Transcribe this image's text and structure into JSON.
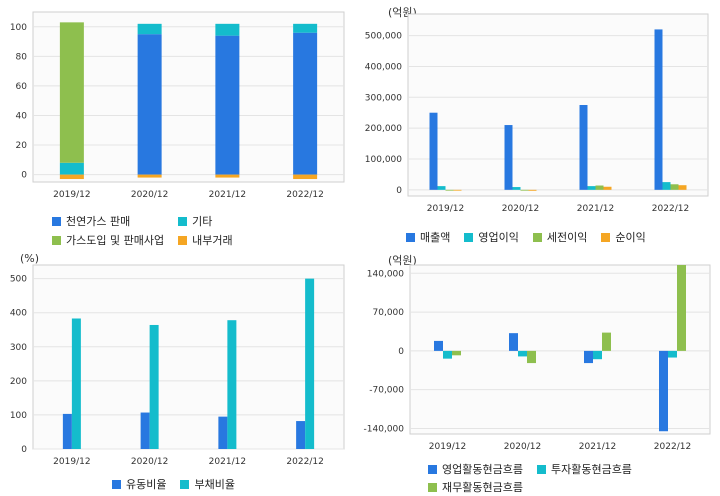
{
  "colors": {
    "blue": "#2878e0",
    "cyan": "#14bccc",
    "green": "#8ebf4e",
    "orange": "#f5a623",
    "grid": "#e4e4e4",
    "frame": "#cfcfcf",
    "plotbg": "#fbfbfb"
  },
  "chart_data": [
    {
      "id": "revenue-mix",
      "type": "bar",
      "stacked": true,
      "unit_label": "",
      "categories": [
        "2019/12",
        "2020/12",
        "2021/12",
        "2022/12"
      ],
      "ylim": [
        -5,
        110
      ],
      "yticks": [
        0,
        20,
        40,
        60,
        80,
        100
      ],
      "grid": true,
      "legend_position": "bottom",
      "series": [
        {
          "name": "천연가스 판매",
          "color": "blue",
          "values": [
            0,
            95,
            94,
            96
          ]
        },
        {
          "name": "기타",
          "color": "cyan",
          "values": [
            8,
            7,
            8,
            6
          ]
        },
        {
          "name": "가스도입 및 판매사업",
          "color": "green",
          "values": [
            95,
            0,
            0,
            0
          ]
        },
        {
          "name": "내부거래",
          "color": "orange",
          "values": [
            -3,
            -2,
            -2,
            -3
          ]
        }
      ]
    },
    {
      "id": "income",
      "type": "bar",
      "stacked": false,
      "unit_label": "(억원)",
      "categories": [
        "2019/12",
        "2020/12",
        "2021/12",
        "2022/12"
      ],
      "ylim": [
        -20000,
        570000
      ],
      "yticks": [
        0,
        100000,
        200000,
        300000,
        400000,
        500000
      ],
      "ytick_labels": [
        "0",
        "100,000",
        "200,000",
        "300,000",
        "400,000",
        "500,000"
      ],
      "grid": true,
      "legend_position": "bottom",
      "series": [
        {
          "name": "매출액",
          "color": "blue",
          "values": [
            250000,
            210000,
            275000,
            520000
          ]
        },
        {
          "name": "영업이익",
          "color": "cyan",
          "values": [
            12000,
            9000,
            12000,
            25000
          ]
        },
        {
          "name": "세전이익",
          "color": "green",
          "values": [
            0,
            -2000,
            14000,
            18000
          ]
        },
        {
          "name": "순이익",
          "color": "orange",
          "values": [
            0,
            -3000,
            10000,
            15000
          ]
        }
      ]
    },
    {
      "id": "ratios",
      "type": "bar",
      "stacked": false,
      "unit_label": "(%)",
      "categories": [
        "2019/12",
        "2020/12",
        "2021/12",
        "2022/12"
      ],
      "ylim": [
        0,
        540
      ],
      "yticks": [
        0,
        100,
        200,
        300,
        400,
        500
      ],
      "grid": true,
      "legend_position": "bottom",
      "series": [
        {
          "name": "유동비율",
          "color": "blue",
          "values": [
            103,
            107,
            95,
            82
          ]
        },
        {
          "name": "부채비율",
          "color": "cyan",
          "values": [
            383,
            364,
            378,
            500
          ]
        }
      ]
    },
    {
      "id": "cashflow",
      "type": "bar",
      "stacked": false,
      "unit_label": "(억원)",
      "categories": [
        "2019/12",
        "2020/12",
        "2021/12",
        "2022/12"
      ],
      "ylim": [
        -150000,
        155000
      ],
      "yticks": [
        -140000,
        -70000,
        0,
        70000,
        140000
      ],
      "ytick_labels": [
        "-140,000",
        "-70,000",
        "0",
        "70,000",
        "140,000"
      ],
      "grid": true,
      "legend_position": "bottom",
      "series": [
        {
          "name": "영업활동현금흐름",
          "color": "blue",
          "values": [
            18000,
            32000,
            -22000,
            -145000
          ]
        },
        {
          "name": "투자활동현금흐름",
          "color": "cyan",
          "values": [
            -14000,
            -10000,
            -15000,
            -12000
          ]
        },
        {
          "name": "재무활동현금흐름",
          "color": "green",
          "values": [
            -8000,
            -22000,
            33000,
            155000
          ]
        }
      ]
    }
  ]
}
